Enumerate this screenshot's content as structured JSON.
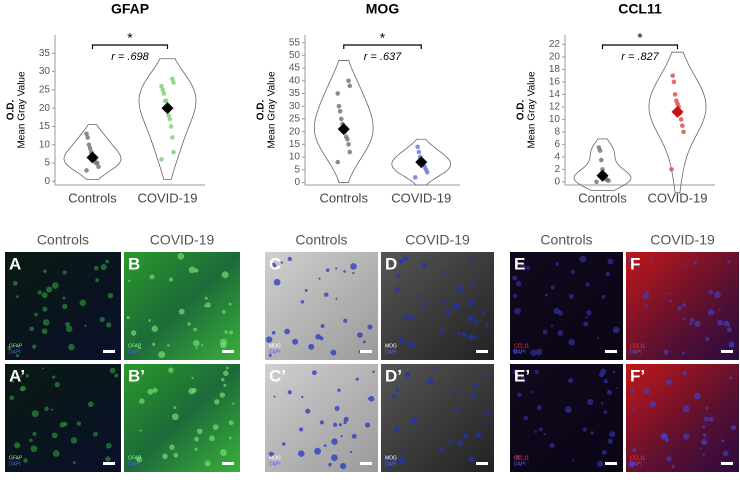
{
  "chart_data": [
    {
      "type": "violin",
      "title": "GFAP",
      "ylabel_title": "O.D.",
      "ylabel": "Mean Gray Value",
      "annotation": "r = .698",
      "significance": "*",
      "categories": [
        "Controls",
        "COVID-19"
      ],
      "points": [
        [
          3,
          4,
          5,
          5,
          6,
          6,
          7,
          8,
          9,
          10,
          12,
          13
        ],
        [
          6,
          8,
          12,
          15,
          17,
          18,
          20,
          22,
          22,
          24,
          25,
          26,
          27,
          28
        ]
      ],
      "means": [
        6.5,
        20
      ],
      "point_colors": [
        "#777777",
        "#7fd37f"
      ],
      "mean_colors": [
        "#000000",
        "#000000"
      ],
      "ylim": [
        -1,
        40
      ],
      "yticks": [
        0,
        5,
        10,
        15,
        20,
        25,
        30,
        35
      ]
    },
    {
      "type": "violin",
      "title": "MOG",
      "ylabel_title": "O.D.",
      "ylabel": "Mean Gray Value",
      "annotation": "r = .637",
      "significance": "*",
      "categories": [
        "Controls",
        "COVID-19"
      ],
      "points": [
        [
          8,
          12,
          15,
          17,
          18,
          20,
          22,
          23,
          25,
          28,
          30,
          35,
          38,
          40
        ],
        [
          2,
          4,
          5,
          6,
          7,
          8,
          9,
          10,
          12,
          14
        ]
      ],
      "means": [
        21,
        8
      ],
      "point_colors": [
        "#777777",
        "#6f7fd8"
      ],
      "mean_colors": [
        "#000000",
        "#000000"
      ],
      "ylim": [
        -1,
        58
      ],
      "yticks": [
        0,
        5,
        10,
        15,
        20,
        25,
        30,
        35,
        40,
        45,
        50,
        55
      ]
    },
    {
      "type": "violin",
      "title": "CCL11",
      "ylabel_title": "O.D.",
      "ylabel": "Mean Gray Value",
      "annotation": "r = .827",
      "significance": "*",
      "categories": [
        "Controls",
        "COVID-19"
      ],
      "points": [
        [
          0,
          0.2,
          0.3,
          0.5,
          0.5,
          1,
          2,
          3.5,
          5,
          5.5
        ],
        [
          2,
          8,
          9,
          10,
          11,
          12,
          12.5,
          13,
          14,
          16,
          17
        ]
      ],
      "means": [
        1,
        11.2
      ],
      "point_colors": [
        "#777777",
        "#e05050"
      ],
      "mean_colors": [
        "#000000",
        "#cc1111"
      ],
      "ylim": [
        -0.5,
        23.5
      ],
      "yticks": [
        0,
        2,
        4,
        6,
        8,
        10,
        12,
        14,
        16,
        18,
        20,
        22
      ]
    }
  ],
  "image_groups": [
    {
      "headers": [
        "Controls",
        "COVID-19"
      ],
      "counterstain": "DAPI",
      "panels": [
        {
          "letter": "A",
          "stain": "GFAP"
        },
        {
          "letter": "B",
          "stain": "GFAP"
        },
        {
          "letter": "A’",
          "stain": "GFAP"
        },
        {
          "letter": "B’",
          "stain": "GFAP"
        }
      ]
    },
    {
      "headers": [
        "Controls",
        "COVID-19"
      ],
      "counterstain": "DAPI",
      "panels": [
        {
          "letter": "C",
          "stain": "MOG"
        },
        {
          "letter": "D",
          "stain": "MOG"
        },
        {
          "letter": "C’",
          "stain": "MOG"
        },
        {
          "letter": "D’",
          "stain": "MOG"
        }
      ]
    },
    {
      "headers": [
        "Controls",
        "COVID-19"
      ],
      "counterstain": "DAPI",
      "panels": [
        {
          "letter": "E",
          "stain": "CCL11"
        },
        {
          "letter": "F",
          "stain": "CCL11"
        },
        {
          "letter": "E’",
          "stain": "CCL11"
        },
        {
          "letter": "F’",
          "stain": "CCL11"
        }
      ]
    }
  ]
}
